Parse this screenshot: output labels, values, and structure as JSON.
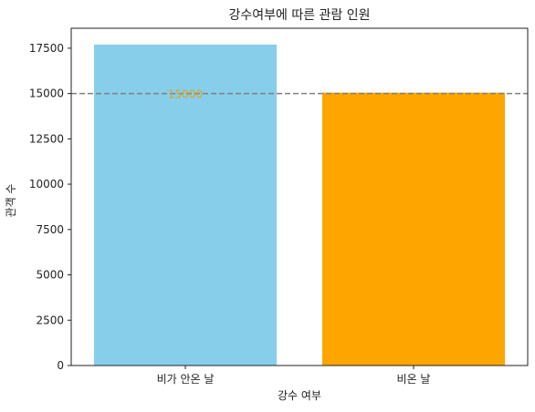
{
  "chart_data": {
    "type": "bar",
    "title": "강수여부에 따른 관람 인원",
    "xlabel": "강수 여부",
    "ylabel": "관객 수",
    "categories": [
      "비가 안온 날",
      "비온 날"
    ],
    "values": [
      17700,
      15050
    ],
    "colors": [
      "#87ceeb",
      "#ffa500"
    ],
    "ylim": [
      0,
      18600
    ],
    "yticks": [
      0,
      2500,
      5000,
      7500,
      10000,
      12500,
      15000,
      17500
    ],
    "grid": false,
    "reference_line": {
      "value": 15000,
      "label": "15000",
      "style": "dashed",
      "color": "#808080",
      "label_color": "#daa520"
    }
  }
}
